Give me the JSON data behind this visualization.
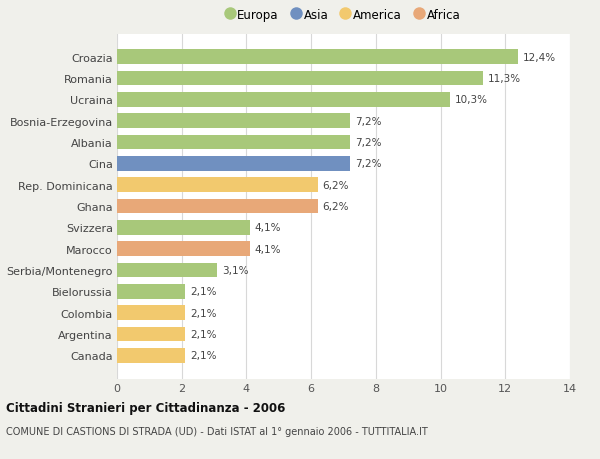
{
  "categories": [
    "Canada",
    "Argentina",
    "Colombia",
    "Bielorussia",
    "Serbia/Montenegro",
    "Marocco",
    "Svizzera",
    "Ghana",
    "Rep. Dominicana",
    "Cina",
    "Albania",
    "Bosnia-Erzegovina",
    "Ucraina",
    "Romania",
    "Croazia"
  ],
  "values": [
    2.1,
    2.1,
    2.1,
    2.1,
    3.1,
    4.1,
    4.1,
    6.2,
    6.2,
    7.2,
    7.2,
    7.2,
    10.3,
    11.3,
    12.4
  ],
  "labels": [
    "2,1%",
    "2,1%",
    "2,1%",
    "2,1%",
    "3,1%",
    "4,1%",
    "4,1%",
    "6,2%",
    "6,2%",
    "7,2%",
    "7,2%",
    "7,2%",
    "10,3%",
    "11,3%",
    "12,4%"
  ],
  "colors": [
    "#f2c96e",
    "#f2c96e",
    "#f2c96e",
    "#a8c87a",
    "#a8c87a",
    "#e8a878",
    "#a8c87a",
    "#e8a878",
    "#f2c96e",
    "#7090c0",
    "#a8c87a",
    "#a8c87a",
    "#a8c87a",
    "#a8c87a",
    "#a8c87a"
  ],
  "legend_labels": [
    "Europa",
    "Asia",
    "America",
    "Africa"
  ],
  "legend_colors": [
    "#a8c87a",
    "#7090c0",
    "#f2c96e",
    "#e8a878"
  ],
  "title1": "Cittadini Stranieri per Cittadinanza - 2006",
  "title2": "COMUNE DI CASTIONS DI STRADA (UD) - Dati ISTAT al 1° gennaio 2006 - TUTTITALIA.IT",
  "xlim": [
    0,
    14
  ],
  "xticks": [
    0,
    2,
    4,
    6,
    8,
    10,
    12,
    14
  ],
  "background_color": "#f0f0eb",
  "bar_background": "#ffffff",
  "grid_color": "#d8d8d8"
}
